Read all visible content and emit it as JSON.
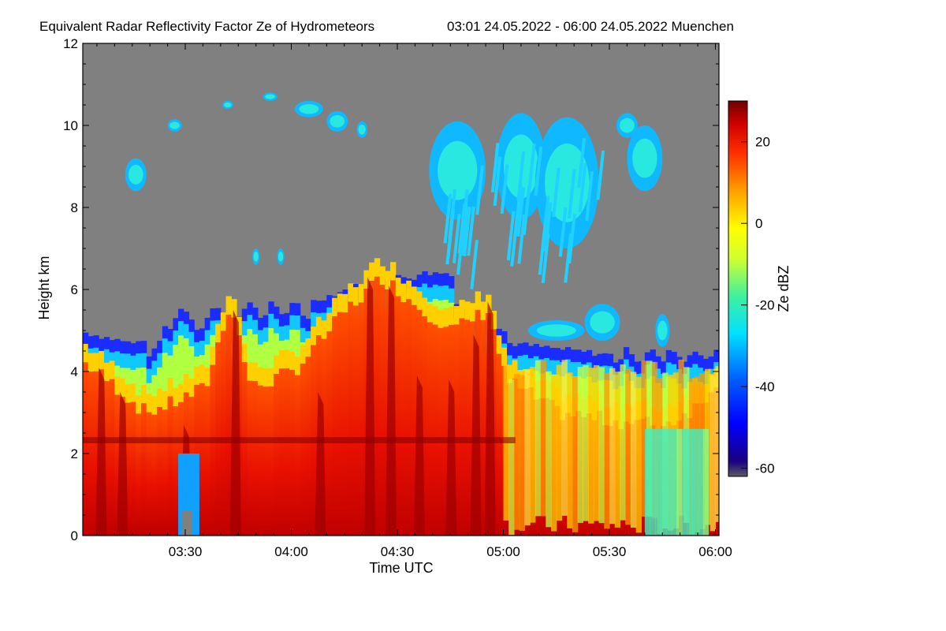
{
  "chart_data": {
    "type": "heatmap",
    "title": "Equivalent Radar Reflectivity Factor Ze of Hydrometeors",
    "time_range_text": "03:01 24.05.2022 - 06:00 24.05.2022 Muenchen",
    "xlabel": "Time UTC",
    "ylabel": "Height km",
    "x_tick_labels": [
      "03:30",
      "04:00",
      "04:30",
      "05:00",
      "05:30",
      "06:00"
    ],
    "x_ticks_minutes": [
      210,
      240,
      270,
      300,
      330,
      360
    ],
    "xlim_minutes": [
      181,
      361
    ],
    "y_tick_labels": [
      "0",
      "2",
      "4",
      "6",
      "8",
      "10",
      "12"
    ],
    "y_ticks": [
      0,
      2,
      4,
      6,
      8,
      10,
      12
    ],
    "ylim": [
      0,
      12
    ],
    "colorbar": {
      "label": "Ze dBZ",
      "tick_labels": [
        "20",
        "0",
        "-20",
        "-40",
        "-60"
      ],
      "ticks": [
        20,
        0,
        -20,
        -40,
        -60
      ],
      "range": [
        -62,
        30
      ]
    },
    "missing_color": "#808080"
  }
}
